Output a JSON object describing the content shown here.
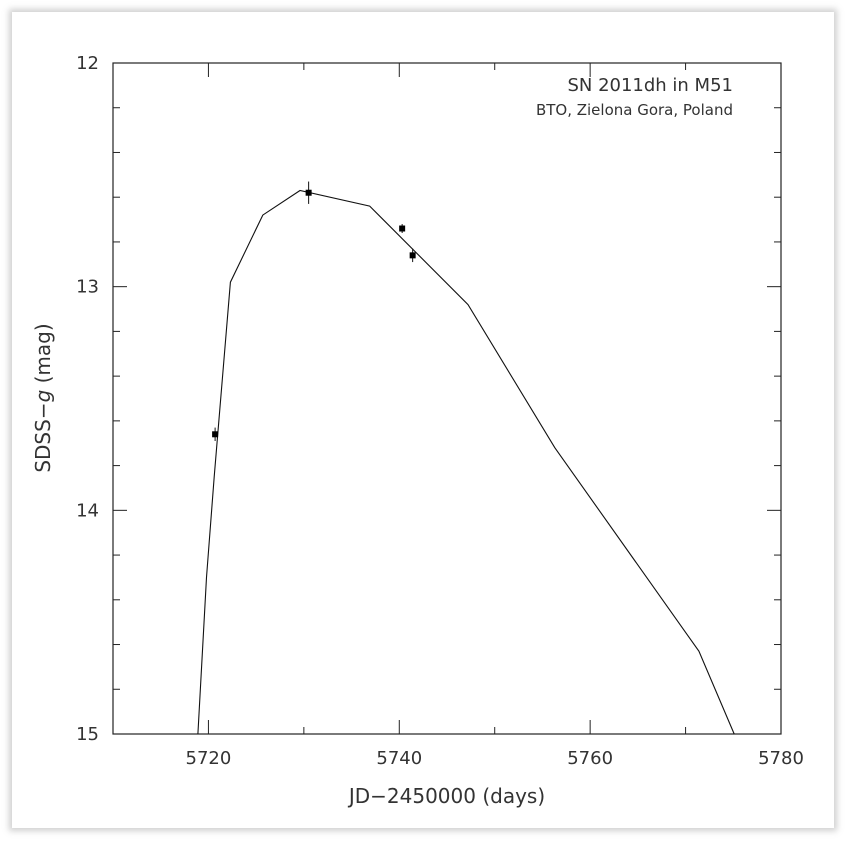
{
  "chart_data": {
    "type": "line",
    "title": "SN 2011dh in M51",
    "subtitle": "BTO, Zielona Gora, Poland",
    "xlabel": "JD−2450000 (days)",
    "ylabel_prefix": "SDSS−",
    "ylabel_var": "g",
    "ylabel_suffix": " (mag)",
    "xlim": [
      5710,
      5780
    ],
    "ylim": [
      12,
      15
    ],
    "y_inverted": true,
    "xticks": [
      5720,
      5740,
      5760,
      5780
    ],
    "xtick_labels": [
      "5720",
      "5740",
      "5760",
      "5780"
    ],
    "yticks": [
      12,
      13,
      14,
      15
    ],
    "ytick_labels": [
      "12",
      "13",
      "14",
      "15"
    ],
    "model_curve": {
      "x": [
        5718.9,
        5719.8,
        5720.6,
        5722.3,
        5725.7,
        5729.6,
        5736.9,
        5747.2,
        5756.3,
        5771.4,
        5775.1
      ],
      "y": [
        15.0,
        14.3,
        13.85,
        12.98,
        12.68,
        12.57,
        12.64,
        13.08,
        13.72,
        14.63,
        15.0
      ]
    },
    "observations": {
      "x": [
        5720.7,
        5730.5,
        5740.3,
        5741.4
      ],
      "y": [
        13.66,
        12.58,
        12.74,
        12.86
      ],
      "yerr": [
        0.03,
        0.05,
        0.02,
        0.03
      ]
    }
  }
}
